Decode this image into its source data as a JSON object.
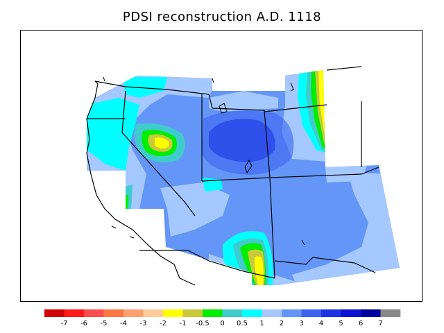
{
  "title": "PDSI reconstruction A.D. 1118",
  "legend": {
    "colors": [
      "#d40000",
      "#ff1a1a",
      "#ff4d4d",
      "#ff7744",
      "#ffa070",
      "#ffcc99",
      "#ffff00",
      "#c9c93a",
      "#00ee00",
      "#40cccc",
      "#00ffff",
      "#a4c8ff",
      "#6496f8",
      "#3c64f0",
      "#1e32e6",
      "#0a14d2",
      "#0000a0",
      "#888888"
    ],
    "ticks": [
      "-7",
      "-6",
      "-5",
      "-4",
      "-3",
      "-2",
      "-1",
      "-0.5",
      "0",
      "0.5",
      "1",
      "2",
      "3",
      "4",
      "5",
      "6",
      "7"
    ]
  },
  "map": {
    "class_colors": {
      "lightblue": "#a4c8ff",
      "blue": "#6496f8",
      "midblue": "#3c64f0",
      "darkblue": "#1e32e6",
      "cyan": "#00ffff",
      "teal": "#40cccc",
      "green": "#00ee00",
      "olive": "#c9c93a",
      "yellow": "#ffff00"
    }
  }
}
